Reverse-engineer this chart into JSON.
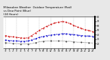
{
  "title_line1": "Milwaukee Weather  Outdoor Temperature (Red)",
  "title_line2": "vs Dew Point (Blue)",
  "title_line3": "(24 Hours)",
  "title_fontsize": 3.0,
  "background_color": "#e8e8e8",
  "plot_bg_color": "#ffffff",
  "x_hours": [
    0,
    1,
    2,
    3,
    4,
    5,
    6,
    7,
    8,
    9,
    10,
    11,
    12,
    13,
    14,
    15,
    16,
    17,
    18,
    19,
    20,
    21,
    22,
    23
  ],
  "temp_red": [
    38,
    36,
    35,
    34,
    33,
    32,
    33,
    38,
    44,
    50,
    55,
    59,
    63,
    66,
    68,
    69,
    68,
    65,
    61,
    57,
    54,
    51,
    49,
    47
  ],
  "dew_blue": [
    28,
    27,
    26,
    26,
    25,
    25,
    26,
    28,
    31,
    34,
    36,
    38,
    39,
    40,
    41,
    42,
    42,
    41,
    40,
    39,
    38,
    37,
    37,
    36
  ],
  "black_line": [
    22,
    21,
    20,
    20,
    19,
    19,
    19,
    20,
    22,
    24,
    25,
    26,
    26,
    26,
    26,
    26,
    25,
    25,
    24,
    23,
    23,
    22,
    22,
    21
  ],
  "ylim": [
    10,
    80
  ],
  "yticks": [
    20,
    30,
    40,
    50,
    60,
    70,
    80
  ],
  "ytick_labels": [
    "20",
    "30",
    "40",
    "50",
    "60",
    "70",
    "80"
  ],
  "xtick_positions": [
    0,
    1,
    2,
    3,
    4,
    5,
    6,
    7,
    8,
    9,
    10,
    11,
    12,
    13,
    14,
    15,
    16,
    17,
    18,
    19,
    20,
    21,
    22,
    23
  ],
  "xtick_labels": [
    "0",
    "1",
    "2",
    "3",
    "4",
    "5",
    "6",
    "7",
    "8",
    "9",
    "10",
    "11",
    "12",
    "13",
    "14",
    "15",
    "16",
    "17",
    "18",
    "19",
    "20",
    "21",
    "22",
    "23"
  ],
  "vgrid_positions": [
    0,
    3,
    6,
    9,
    12,
    15,
    18,
    21,
    23
  ],
  "red_color": "#cc0000",
  "blue_color": "#0000cc",
  "black_color": "#000000",
  "grid_color": "#999999",
  "tick_fontsize": 2.2,
  "linewidth_main": 0.6,
  "linewidth_black": 0.5,
  "right_bar_color": "#000000"
}
